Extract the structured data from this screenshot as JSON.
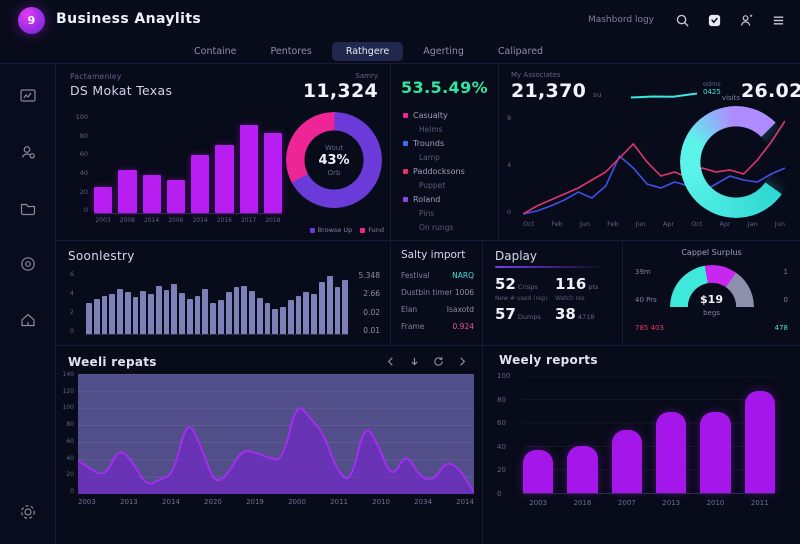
{
  "header": {
    "title": "Business Anaylits",
    "logo_letter": "9",
    "right_label": "Mashbord logy",
    "icons": [
      "search",
      "notifications",
      "profile",
      "menu"
    ]
  },
  "tabs": {
    "items": [
      {
        "label": "Containe",
        "active": false
      },
      {
        "label": "Pentores",
        "active": false
      },
      {
        "label": "Rathgere",
        "active": true
      },
      {
        "label": "Agerting",
        "active": false
      },
      {
        "label": "Calipared",
        "active": false
      }
    ]
  },
  "sidebar": {
    "icons": [
      "dashboard",
      "user-search",
      "projects",
      "history",
      "home"
    ],
    "bottom_icon": "settings"
  },
  "panels": {
    "market": {
      "eyebrow": "Pactamenley",
      "title": "DS Mokat Texas",
      "metric_label": "Samry",
      "metric_value": "11,324",
      "chart": {
        "type": "bar",
        "categories": [
          "2003",
          "2008",
          "2014",
          "2006",
          "2014",
          "2016",
          "2017",
          "2018"
        ],
        "values": [
          32,
          52,
          46,
          40,
          70,
          83,
          107,
          97
        ],
        "yticks": [
          100,
          80,
          60,
          40,
          20,
          0
        ],
        "ymax": 120,
        "color": "#b81ef2"
      },
      "donut": {
        "type": "pie",
        "center_top": "Wout",
        "center_value": "43%",
        "center_bottom": "Orb",
        "slices": [
          {
            "label": "Fund",
            "value": 33,
            "color": "#ee2695"
          },
          {
            "label": "Browse Up",
            "value": 67,
            "color": "#6a3bd8"
          }
        ],
        "legend": [
          {
            "label": "Browse Up",
            "color": "#6a3bd8"
          },
          {
            "label": "Fund",
            "color": "#ee2695"
          }
        ]
      }
    },
    "rate": {
      "value": "53.5.49%",
      "color": "#31e6a1",
      "items": [
        {
          "label": "Casualty",
          "marker": "#ee2695"
        },
        {
          "label": "Helms",
          "marker": ""
        },
        {
          "label": "Trounds",
          "marker": "#3b6ef0"
        },
        {
          "label": "Lamp",
          "marker": ""
        },
        {
          "label": "Paddocksons",
          "marker": "#e8336a"
        },
        {
          "label": "Puppet",
          "marker": ""
        },
        {
          "label": "Roland",
          "marker": "#8a46e8"
        },
        {
          "label": "Pins",
          "marker": ""
        },
        {
          "label": "On rungs",
          "marker": ""
        }
      ]
    },
    "traffic": {
      "metric_label": "My Associates",
      "metric_value": "21,370",
      "metric_suffix": "su",
      "spark_label": "odms",
      "spark_value": "0425",
      "metric2_value": "26.02",
      "metric2_suffix": "lbs",
      "gauge": {
        "label": "visits",
        "colors": [
          "#2ed8d2",
          "#5cf4ea",
          "#ae8cff"
        ]
      },
      "chart": {
        "type": "line",
        "x": [
          "Oct",
          "Feb",
          "Jun",
          "Feb",
          "Jun",
          "Apr",
          "Oct",
          "Apr",
          "Jan",
          "Jun"
        ],
        "yticks": [
          "8",
          "4",
          "0"
        ],
        "ymax": 100,
        "series": [
          {
            "name": "pink",
            "color": "#e03572",
            "values": [
              2,
              10,
              16,
              22,
              28,
              36,
              44,
              58,
              72,
              54,
              40,
              44,
              38,
              48,
              44,
              46,
              42,
              56,
              74,
              95
            ]
          },
          {
            "name": "blue",
            "color": "#4050e8",
            "values": [
              2,
              5,
              10,
              16,
              24,
              18,
              30,
              60,
              48,
              32,
              28,
              34,
              30,
              24,
              32,
              40,
              36,
              34,
              42,
              48
            ]
          }
        ]
      }
    },
    "secondary": {
      "title": "Soonlestry",
      "chart": {
        "type": "bar",
        "values": [
          3.2,
          3.6,
          3.9,
          4.1,
          4.6,
          4.3,
          3.8,
          4.4,
          4.1,
          5.0,
          4.5,
          5.2,
          4.2,
          3.6,
          3.9,
          4.6,
          3.2,
          3.5,
          4.3,
          4.8,
          5.0,
          4.4,
          3.7,
          3.2,
          2.6,
          2.8,
          3.5,
          3.9,
          4.3,
          4.1,
          5.4,
          6.0,
          4.8,
          5.6
        ],
        "ymax": 6.5,
        "yticks": [
          "6",
          "4",
          "2",
          "0"
        ],
        "color": "#7d81b8"
      },
      "stats": [
        "5.348",
        "2.66",
        "0.02",
        "0.01"
      ]
    },
    "salty": {
      "title": "Salty import",
      "rows": [
        {
          "label": "Festival",
          "value": "NARQ",
          "color": "#43e2d8"
        },
        {
          "label": "Dustbin timer",
          "value": "1006",
          "color": ""
        },
        {
          "label": "Elan",
          "value": "Isaxotd",
          "color": ""
        },
        {
          "label": "Frame",
          "value": "0.924",
          "color": "#f04fa0"
        }
      ]
    },
    "display": {
      "title": "Daplay",
      "cells": [
        {
          "value": "52",
          "unit": "Crisps"
        },
        {
          "value": "116",
          "unit": "pts"
        },
        {
          "value": "57",
          "unit": "Dumps"
        },
        {
          "value": "38",
          "unit": "4718"
        }
      ],
      "captions": [
        "New # used (rep)",
        "Watch res"
      ]
    },
    "surplus": {
      "title": "Cappel Surplus",
      "center_value": "$19",
      "center_label": "begs",
      "left": [
        {
          "text": "39m",
          "color": ""
        },
        {
          "text": "40 Prs",
          "color": ""
        },
        {
          "text": "785 403",
          "color": "#e8336a"
        }
      ],
      "right": [
        {
          "text": "1",
          "color": ""
        },
        {
          "text": "0",
          "color": ""
        },
        {
          "text": "478",
          "color": "#43e2d8"
        }
      ],
      "gauge": {
        "segments": [
          {
            "color": "#3ee9d9",
            "deg": 80
          },
          {
            "color": "#c926ef",
            "deg": 45
          },
          {
            "color": "#8b90ad",
            "deg": 55
          }
        ]
      }
    },
    "weekly_reports": {
      "title": "Weeli repats",
      "toolbar": [
        "arrow-left",
        "arrow-down",
        "refresh",
        "arrow-right"
      ],
      "chart": {
        "type": "area",
        "color": "#a32df0",
        "fill": "rgba(122,28,214,0.55)",
        "yticks": [
          140,
          120,
          100,
          80,
          60,
          40,
          20,
          0
        ],
        "ymax": 150,
        "xlabels": [
          "2003",
          "2013",
          "2014",
          "2020",
          "2019",
          "2000",
          "2011",
          "2010",
          "2034",
          "2014"
        ],
        "values": [
          42,
          30,
          22,
          58,
          40,
          10,
          18,
          25,
          95,
          60,
          12,
          25,
          55,
          52,
          45,
          42,
          115,
          95,
          75,
          28,
          14,
          90,
          60,
          18,
          52,
          22,
          16,
          42,
          30,
          2
        ]
      }
    },
    "weekly_results": {
      "title": "Weely reports",
      "chart": {
        "type": "bar",
        "categories": [
          "2003",
          "2016",
          "2007",
          "2013",
          "2010",
          "2011"
        ],
        "values": [
          37,
          40,
          54,
          69,
          69,
          87
        ],
        "yticks": [
          100,
          80,
          60,
          40,
          20,
          0
        ],
        "ymax": 100,
        "color": "#a416ea"
      }
    }
  },
  "colors": {
    "accent_magenta": "#b81ef2",
    "accent_teal": "#3ce8df",
    "accent_green": "#31e6a1",
    "accent_pink": "#ee2695",
    "accent_purple": "#6a3bd8"
  }
}
